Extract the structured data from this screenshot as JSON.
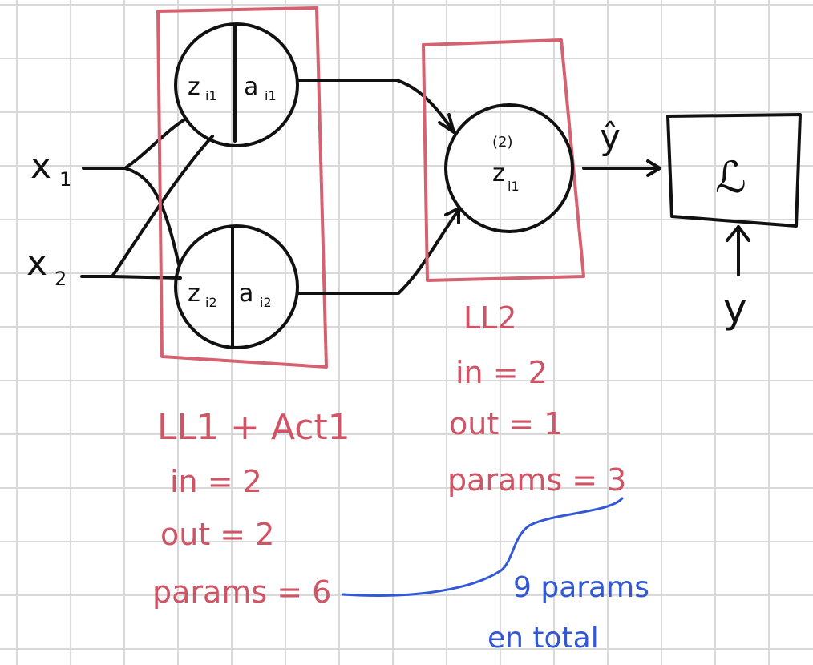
{
  "inputs": {
    "x1": "x",
    "x1_sub": "1",
    "x2": "x",
    "x2_sub": "2"
  },
  "layer1": {
    "neuron1": {
      "z": "z",
      "z_sub": "i1",
      "a": "a",
      "a_sub": "i1"
    },
    "neuron2": {
      "z": "z",
      "z_sub": "i2",
      "a": "a",
      "a_sub": "i2"
    },
    "title": "LL1 + Act1",
    "in": "in = 2",
    "out": "out = 2",
    "params": "params = 6"
  },
  "layer2": {
    "neuron": {
      "sup": "(2)",
      "z": "z",
      "z_sub": "i1"
    },
    "title": "LL2",
    "in": "in = 2",
    "out": "out = 1",
    "params": "params = 3"
  },
  "output": {
    "y_hat": "ŷ",
    "loss": "ℒ",
    "y": "y"
  },
  "summary": {
    "line1": "9 params",
    "line2": "en total"
  },
  "colors": {
    "ink": "#111111",
    "red": "#cf5566",
    "blue": "#3358d6",
    "grid": "#d9d9d9"
  }
}
